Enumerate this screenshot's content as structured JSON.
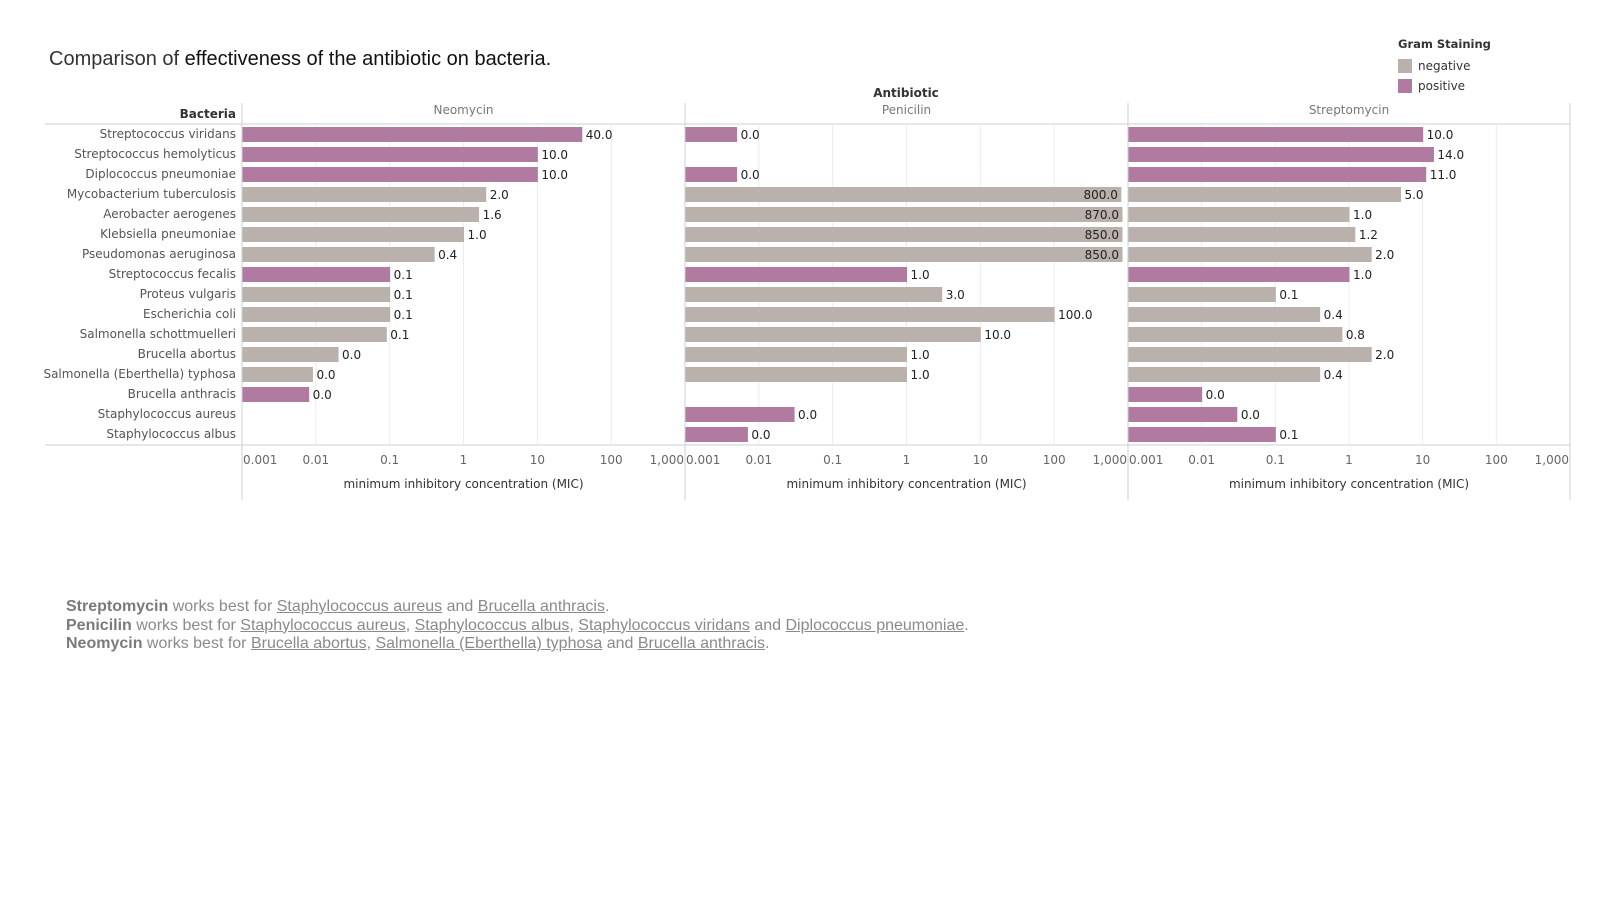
{
  "title": {
    "lead": "Comparison of",
    "rest": "effectiveness of the antibiotic on bacteria."
  },
  "legend": {
    "title": "Gram Staining",
    "items": [
      {
        "label": "negative",
        "color": "#bab0ac"
      },
      {
        "label": "positive",
        "color": "#b07aa1"
      }
    ]
  },
  "chart_data": {
    "type": "bar",
    "orientation": "horizontal",
    "scale": "log",
    "column_header": "Antibiotic",
    "row_header": "Bacteria",
    "xlabel": "minimum inhibitory concentration (MIC)",
    "xlim": [
      0.001,
      1000
    ],
    "tick_labels": [
      "0.001",
      "0.01",
      "0.1",
      "1",
      "10",
      "100",
      "1,000"
    ],
    "grid": true,
    "legend_position": "top-right",
    "categories": [
      "Streptococcus viridans",
      "Streptococcus hemolyticus",
      "Diplococcus pneumoniae",
      "Mycobacterium tuberculosis",
      "Aerobacter aerogenes",
      "Klebsiella pneumoniae",
      "Pseudomonas aeruginosa",
      "Streptococcus fecalis",
      "Proteus vulgaris",
      "Escherichia coli",
      "Salmonella schottmuelleri",
      "Brucella abortus",
      "Salmonella (Eberthella) typhosa",
      "Brucella anthracis",
      "Staphylococcus aureus",
      "Staphylococcus albus"
    ],
    "gram": [
      "positive",
      "positive",
      "positive",
      "negative",
      "negative",
      "negative",
      "negative",
      "positive",
      "negative",
      "negative",
      "negative",
      "negative",
      "negative",
      "positive",
      "positive",
      "positive"
    ],
    "series": [
      {
        "name": "Neomycin",
        "values": [
          40,
          10,
          10,
          2,
          1.6,
          1,
          0.4,
          0.1,
          0.1,
          0.1,
          0.09,
          0.02,
          0.009,
          0.008,
          null,
          null
        ],
        "labels": [
          "40.0",
          "10.0",
          "10.0",
          "2.0",
          "1.6",
          "1.0",
          "0.4",
          "0.1",
          "0.1",
          "0.1",
          "0.1",
          "0.0",
          "0.0",
          "0.0",
          "",
          ""
        ]
      },
      {
        "name": "Penicilin",
        "values": [
          0.005,
          null,
          0.005,
          800,
          870,
          850,
          850,
          1,
          3,
          100,
          10,
          1,
          1,
          null,
          0.03,
          0.007
        ],
        "labels": [
          "0.0",
          "",
          "0.0",
          "800.0",
          "870.0",
          "850.0",
          "850.0",
          "1.0",
          "3.0",
          "100.0",
          "10.0",
          "1.0",
          "1.0",
          "",
          "0.0",
          "0.0"
        ]
      },
      {
        "name": "Streptomycin",
        "values": [
          10,
          14,
          11,
          5,
          1,
          1.2,
          2,
          1,
          0.1,
          0.4,
          0.8,
          2,
          0.4,
          0.01,
          0.03,
          0.1
        ],
        "labels": [
          "10.0",
          "14.0",
          "11.0",
          "5.0",
          "1.0",
          "1.2",
          "2.0",
          "1.0",
          "0.1",
          "0.4",
          "0.8",
          "2.0",
          "0.4",
          "0.0",
          "0.0",
          "0.1"
        ]
      }
    ]
  },
  "notes": [
    {
      "drug": "Streptomycin",
      "mid": " works best for ",
      "items": [
        "Staphylococcus aureus",
        "Brucella anthracis"
      ]
    },
    {
      "drug": "Penicilin",
      "mid": " works best for ",
      "items": [
        "Staphylococcus aureus",
        "Staphylococcus albus",
        "Staphylococcus viridans",
        "Diplococcus pneumoniae"
      ]
    },
    {
      "drug": "Neomycin",
      "mid": " works best for ",
      "items": [
        "Brucella abortus",
        "Salmonella (Eberthella) typhosa",
        "Brucella anthracis"
      ]
    }
  ],
  "note_words": {
    "and": "and",
    "comma": ", ",
    "period": "."
  }
}
